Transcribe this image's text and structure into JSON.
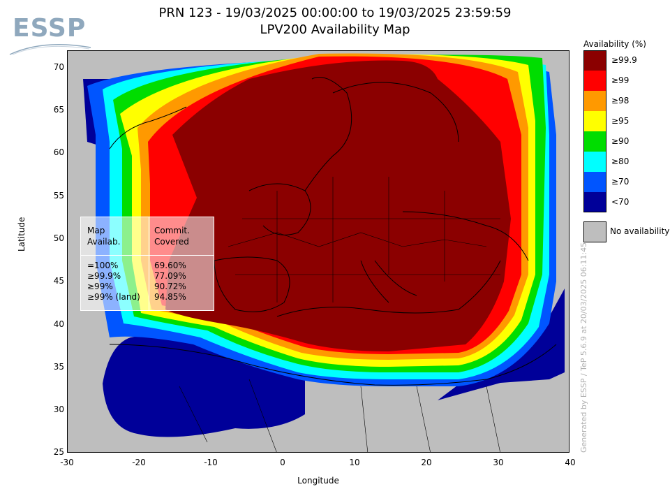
{
  "logo": {
    "text": "ESSP"
  },
  "title": {
    "line1": "PRN 123 - 19/03/2025 00:00:00 to 19/03/2025 23:59:59",
    "line2": "LPV200 Availability Map"
  },
  "axes": {
    "xlabel": "Longitude",
    "ylabel": "Latitude",
    "xticks": [
      "-30",
      "-20",
      "-10",
      "0",
      "10",
      "20",
      "30",
      "40"
    ],
    "yticks": [
      "70",
      "65",
      "60",
      "55",
      "50",
      "45",
      "40",
      "35",
      "30",
      "25"
    ],
    "xlim": [
      -30,
      40
    ],
    "ylim": [
      25,
      72
    ]
  },
  "legend": {
    "title": "Availability (%)",
    "items": [
      {
        "label": "≥99.9",
        "color": "#8b0000"
      },
      {
        "label": "≥99",
        "color": "#ff0000"
      },
      {
        "label": "≥98",
        "color": "#ff9900"
      },
      {
        "label": "≥95",
        "color": "#ffff00"
      },
      {
        "label": "≥90",
        "color": "#00dd00"
      },
      {
        "label": "≥80",
        "color": "#00ffff"
      },
      {
        "label": "≥70",
        "color": "#0055ff"
      },
      {
        "label": "<70",
        "color": "#000099"
      }
    ],
    "no_availability": {
      "label": "No availability",
      "color": "#bebebe"
    }
  },
  "stats": {
    "col1_header": [
      "Map",
      "Availab."
    ],
    "col2_header": [
      "Commit.",
      "Covered"
    ],
    "rows": [
      {
        "label": "=100%",
        "value": "69.60%"
      },
      {
        "label": "≥99.9%",
        "value": "77.09%"
      },
      {
        "label": "≥99%",
        "value": "90.72%"
      },
      {
        "label": "≥99% (land)",
        "value": "94.85%"
      }
    ]
  },
  "credit": "Generated by ESSP / TeP 5.6.9 at 20/03/2025 06:11:45"
}
